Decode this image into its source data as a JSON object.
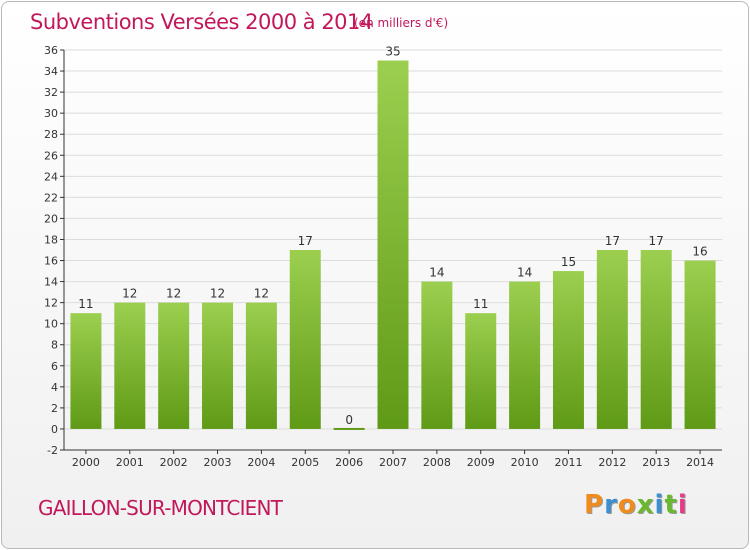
{
  "header": {
    "title": "Subventions Versées 2000 à 2014",
    "unit": "(en milliers d'€)"
  },
  "footer": {
    "commune": "GAILLON-SUR-MONTCIENT",
    "brand": "Proxiti",
    "brand_colors": [
      "#f08c1e",
      "#3c8fd0",
      "#f08c1e",
      "#6ab82f",
      "#3c8fd0",
      "#6ab82f",
      "#e63a8a"
    ]
  },
  "chart_data": {
    "type": "bar",
    "title": "Subventions Versées 2000 à 2014",
    "subtitle": "(en milliers d'€)",
    "xlabel": "",
    "ylabel": "",
    "categories": [
      "2000",
      "2001",
      "2002",
      "2003",
      "2004",
      "2005",
      "2006",
      "2007",
      "2008",
      "2009",
      "2010",
      "2011",
      "2012",
      "2013",
      "2014"
    ],
    "values": [
      11,
      12,
      12,
      12,
      12,
      17,
      0,
      35,
      14,
      11,
      14,
      15,
      17,
      17,
      16
    ],
    "data_labels": [
      "11",
      "12",
      "12",
      "12",
      "12",
      "17",
      "0",
      "35",
      "14",
      "11",
      "14",
      "15",
      "17",
      "17",
      "16"
    ],
    "ylim": [
      -2,
      36
    ],
    "yticks": [
      -2,
      0,
      2,
      4,
      6,
      8,
      10,
      12,
      14,
      16,
      18,
      20,
      22,
      24,
      26,
      28,
      30,
      32,
      34,
      36
    ],
    "grid": true,
    "bar_color_top": "#9ccf4f",
    "bar_color_bottom": "#5f9a16",
    "axis_color": "#333333"
  }
}
